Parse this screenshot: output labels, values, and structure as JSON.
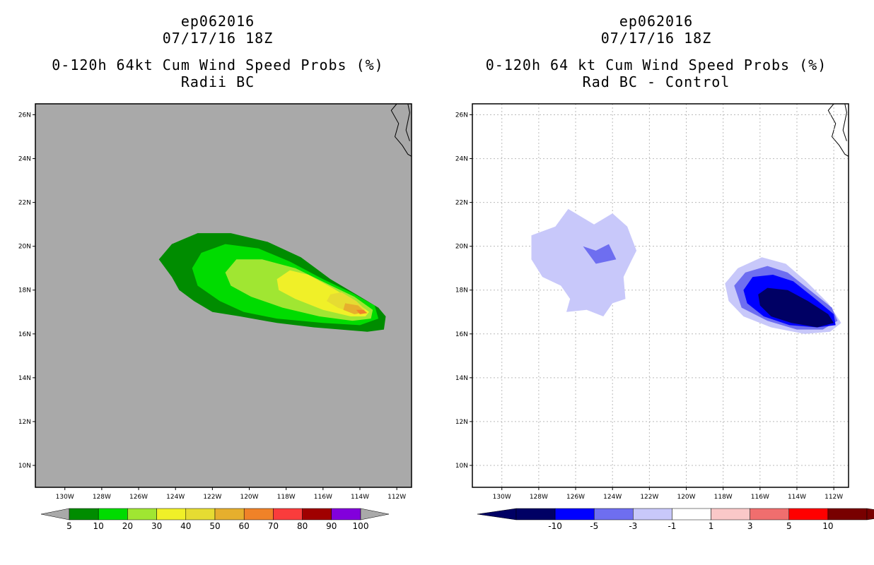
{
  "left": {
    "title_line1": "ep062016",
    "title_line2": "07/17/16 18Z",
    "title_line3": "0-120h 64kt Cum Wind Speed Probs (%)",
    "title_line4": "Radii BC"
  },
  "right": {
    "title_line1": "ep062016",
    "title_line2": "07/17/16 18Z",
    "title_line3": "0-120h 64 kt Cum Wind Speed Probs (%)",
    "title_line4": "Rad BC - Control"
  },
  "chart_data": [
    {
      "type": "heatmap",
      "title": "0-120h 64kt Cum Wind Speed Probs (%) - Radii BC",
      "xlabel": "",
      "ylabel": "",
      "x_ticks": [
        "130W",
        "128W",
        "126W",
        "124W",
        "122W",
        "120W",
        "118W",
        "116W",
        "114W",
        "112W"
      ],
      "y_ticks": [
        "26N",
        "24N",
        "22N",
        "20N",
        "18N",
        "16N",
        "14N",
        "12N",
        "10N"
      ],
      "xlim_lon": [
        -131.6,
        -111.2
      ],
      "ylim_lat": [
        9,
        26.5
      ],
      "background_color": "#a9a9a9",
      "grid": false,
      "colorbar": {
        "labels": [
          "5",
          "10",
          "20",
          "30",
          "40",
          "50",
          "60",
          "70",
          "80",
          "90",
          "100"
        ],
        "colors": [
          "#008c00",
          "#00dc00",
          "#a0e632",
          "#f0f028",
          "#e6dc32",
          "#e6af2d",
          "#f08228",
          "#fa3c3c",
          "#a00000",
          "#8200dc"
        ],
        "under_color": "#a9a9a9",
        "over_color": "#a9a9a9"
      },
      "contours": [
        {
          "level": "5-10",
          "color": "#008c00",
          "points": [
            [
              -124.9,
              19.4
            ],
            [
              -124.2,
              20.1
            ],
            [
              -122.8,
              20.6
            ],
            [
              -121.0,
              20.6
            ],
            [
              -119.0,
              20.2
            ],
            [
              -117.2,
              19.5
            ],
            [
              -115.6,
              18.5
            ],
            [
              -114.2,
              17.8
            ],
            [
              -113.0,
              17.2
            ],
            [
              -112.6,
              16.8
            ],
            [
              -112.7,
              16.2
            ],
            [
              -113.6,
              16.1
            ],
            [
              -116.5,
              16.3
            ],
            [
              -118.5,
              16.5
            ],
            [
              -120.5,
              16.8
            ],
            [
              -122.0,
              17.0
            ],
            [
              -123.0,
              17.5
            ],
            [
              -123.8,
              18.0
            ],
            [
              -124.2,
              18.6
            ]
          ]
        },
        {
          "level": "10-20",
          "color": "#00dc00",
          "points": [
            [
              -123.1,
              19.0
            ],
            [
              -122.6,
              19.7
            ],
            [
              -121.3,
              20.1
            ],
            [
              -119.5,
              19.9
            ],
            [
              -117.8,
              19.3
            ],
            [
              -116.0,
              18.5
            ],
            [
              -114.5,
              17.9
            ],
            [
              -113.2,
              17.3
            ],
            [
              -113.0,
              16.7
            ],
            [
              -114.0,
              16.4
            ],
            [
              -116.0,
              16.5
            ],
            [
              -118.5,
              16.7
            ],
            [
              -120.3,
              17.0
            ],
            [
              -121.6,
              17.5
            ],
            [
              -122.8,
              18.2
            ]
          ]
        },
        {
          "level": "20-30",
          "color": "#a0e632",
          "points": [
            [
              -121.3,
              18.8
            ],
            [
              -120.7,
              19.4
            ],
            [
              -119.3,
              19.4
            ],
            [
              -117.5,
              19.0
            ],
            [
              -115.8,
              18.3
            ],
            [
              -114.3,
              17.7
            ],
            [
              -113.3,
              17.1
            ],
            [
              -113.4,
              16.7
            ],
            [
              -114.4,
              16.6
            ],
            [
              -116.2,
              16.8
            ],
            [
              -118.2,
              17.2
            ],
            [
              -119.9,
              17.7
            ],
            [
              -121.0,
              18.2
            ]
          ]
        },
        {
          "level": "30-40",
          "color": "#f0f028",
          "points": [
            [
              -118.5,
              18.5
            ],
            [
              -117.8,
              18.9
            ],
            [
              -116.8,
              18.7
            ],
            [
              -115.5,
              18.1
            ],
            [
              -114.3,
              17.5
            ],
            [
              -113.5,
              17.0
            ],
            [
              -113.7,
              16.8
            ],
            [
              -114.5,
              16.8
            ],
            [
              -116.0,
              17.1
            ],
            [
              -117.5,
              17.6
            ],
            [
              -118.4,
              18.0
            ]
          ]
        },
        {
          "level": "40-50",
          "color": "#e6dc32",
          "points": [
            [
              -115.6,
              17.8
            ],
            [
              -115.0,
              17.9
            ],
            [
              -114.2,
              17.5
            ],
            [
              -113.7,
              17.1
            ],
            [
              -114.2,
              16.9
            ],
            [
              -115.2,
              17.2
            ],
            [
              -115.8,
              17.5
            ]
          ]
        },
        {
          "level": "50-60",
          "color": "#e6af2d",
          "points": [
            [
              -114.8,
              17.4
            ],
            [
              -114.1,
              17.3
            ],
            [
              -113.7,
              17.0
            ],
            [
              -114.3,
              16.9
            ],
            [
              -114.9,
              17.1
            ]
          ]
        },
        {
          "level": "60-70",
          "color": "#f08228",
          "points": [
            [
              -114.2,
              17.1
            ],
            [
              -113.8,
              17.1
            ],
            [
              -113.6,
              16.95
            ],
            [
              -114.0,
              16.9
            ]
          ]
        }
      ]
    },
    {
      "type": "heatmap",
      "title": "0-120h 64 kt Cum Wind Speed Probs (%) - Rad BC - Control",
      "xlabel": "",
      "ylabel": "",
      "x_ticks": [
        "130W",
        "128W",
        "126W",
        "124W",
        "122W",
        "120W",
        "118W",
        "116W",
        "114W",
        "112W"
      ],
      "y_ticks": [
        "26N",
        "24N",
        "22N",
        "20N",
        "18N",
        "16N",
        "14N",
        "12N",
        "10N"
      ],
      "xlim_lon": [
        -131.6,
        -111.2
      ],
      "ylim_lat": [
        9,
        26.5
      ],
      "background_color": "#ffffff",
      "grid": true,
      "colorbar": {
        "labels": [
          "-10",
          "-5",
          "-3",
          "-1",
          "1",
          "3",
          "5",
          "10"
        ],
        "colors": [
          "#000064",
          "#0000ff",
          "#6e6ef0",
          "#c8c8fa",
          "#ffffff",
          "#fac8c8",
          "#f06e6e",
          "#ff0000",
          "#780000"
        ],
        "under_color": "#000064",
        "over_color": "#780000"
      },
      "contours": [
        {
          "level": "-3 to -1",
          "color": "#c8c8fa",
          "points": [
            [
              -128.4,
              19.4
            ],
            [
              -128.4,
              20.5
            ],
            [
              -127.1,
              20.9
            ],
            [
              -126.4,
              21.7
            ],
            [
              -125.0,
              21.0
            ],
            [
              -124.0,
              21.5
            ],
            [
              -123.2,
              20.9
            ],
            [
              -122.7,
              19.8
            ],
            [
              -123.0,
              19.3
            ],
            [
              -123.4,
              18.6
            ],
            [
              -123.3,
              17.6
            ],
            [
              -124.0,
              17.4
            ],
            [
              -124.5,
              16.8
            ],
            [
              -125.4,
              17.1
            ],
            [
              -126.5,
              17.0
            ],
            [
              -126.3,
              17.6
            ],
            [
              -126.8,
              18.2
            ],
            [
              -127.8,
              18.6
            ]
          ]
        },
        {
          "level": "-5 to -3",
          "color": "#6e6ef0",
          "points": [
            [
              -125.6,
              20.0
            ],
            [
              -124.9,
              19.8
            ],
            [
              -124.2,
              20.1
            ],
            [
              -123.8,
              19.4
            ],
            [
              -124.9,
              19.2
            ]
          ]
        },
        {
          "level": "-3 to -1",
          "color": "#c8c8fa",
          "points": [
            [
              -117.9,
              18.3
            ],
            [
              -117.2,
              19.0
            ],
            [
              -115.9,
              19.5
            ],
            [
              -114.6,
              19.2
            ],
            [
              -113.5,
              18.4
            ],
            [
              -112.3,
              17.4
            ],
            [
              -111.6,
              16.5
            ],
            [
              -112.2,
              16.1
            ],
            [
              -113.6,
              16.0
            ],
            [
              -115.4,
              16.3
            ],
            [
              -116.9,
              16.8
            ],
            [
              -117.7,
              17.5
            ]
          ]
        },
        {
          "level": "-5 to -3",
          "color": "#6e6ef0",
          "points": [
            [
              -117.4,
              18.2
            ],
            [
              -116.8,
              18.8
            ],
            [
              -115.6,
              19.1
            ],
            [
              -114.5,
              18.8
            ],
            [
              -113.3,
              18.0
            ],
            [
              -112.1,
              17.2
            ],
            [
              -111.8,
              16.6
            ],
            [
              -112.6,
              16.2
            ],
            [
              -114.0,
              16.2
            ],
            [
              -115.6,
              16.6
            ],
            [
              -117.0,
              17.2
            ]
          ]
        },
        {
          "level": "-10 to -5",
          "color": "#0000ff",
          "points": [
            [
              -116.9,
              18.0
            ],
            [
              -116.4,
              18.6
            ],
            [
              -115.3,
              18.7
            ],
            [
              -114.2,
              18.4
            ],
            [
              -113.0,
              17.6
            ],
            [
              -112.0,
              16.9
            ],
            [
              -111.9,
              16.4
            ],
            [
              -112.9,
              16.3
            ],
            [
              -114.4,
              16.4
            ],
            [
              -115.8,
              16.8
            ],
            [
              -116.7,
              17.4
            ]
          ]
        },
        {
          "level": "< -10",
          "color": "#000064",
          "points": [
            [
              -116.1,
              17.8
            ],
            [
              -115.6,
              18.1
            ],
            [
              -114.5,
              18.0
            ],
            [
              -113.4,
              17.5
            ],
            [
              -112.3,
              16.9
            ],
            [
              -112.0,
              16.5
            ],
            [
              -112.9,
              16.3
            ],
            [
              -114.3,
              16.5
            ],
            [
              -115.4,
              16.8
            ],
            [
              -116.0,
              17.3
            ]
          ]
        }
      ]
    }
  ]
}
